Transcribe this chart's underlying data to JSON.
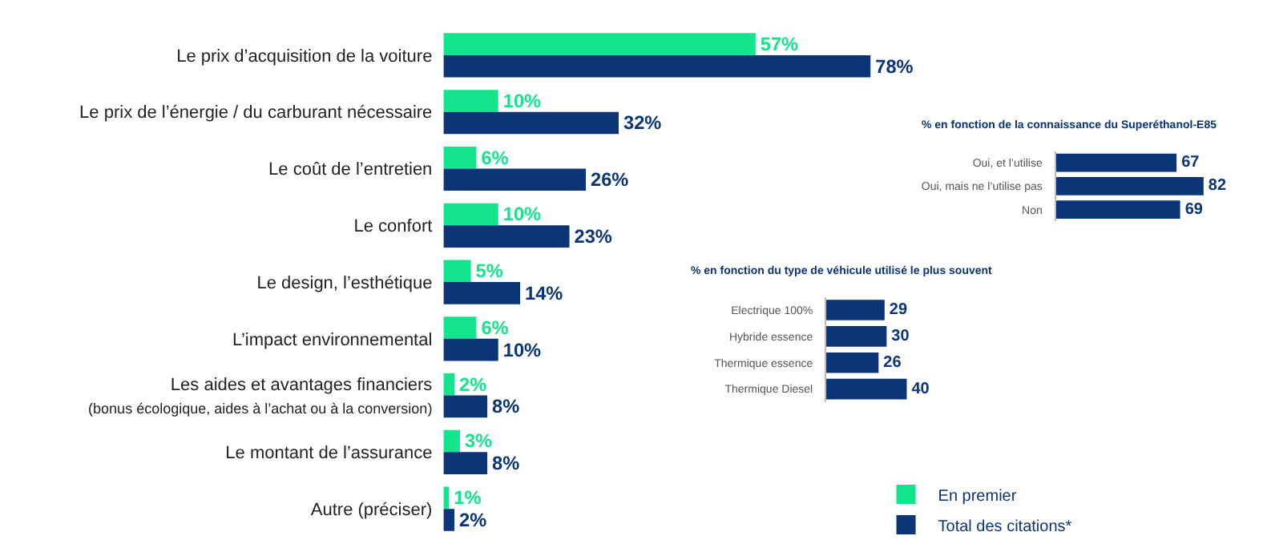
{
  "chart_data": [
    {
      "type": "bar",
      "orientation": "horizontal",
      "legend": "bottom right",
      "categories": [
        "Le prix d’acquisition de la voiture",
        "Le prix de l’énergie / du carburant nécessaire",
        "Le coût de l’entretien",
        "Le confort",
        "Le design, l’esthétique",
        "L’impact environnemental",
        "Les aides et avantages financiers\n(bonus écologique, aides à l’achat ou à la conversion)",
        "Le montant de l’assurance",
        "Autre (préciser)"
      ],
      "series": [
        {
          "name": "En premier",
          "color": "#12e58c",
          "values": [
            57,
            10,
            6,
            10,
            5,
            6,
            2,
            3,
            1
          ],
          "value_labels": [
            "57%",
            "10%",
            "6%",
            "10%",
            "5%",
            "6%",
            "2%",
            "3%",
            "1%"
          ]
        },
        {
          "name": "Total des citations*",
          "color": "#0b3577",
          "values": [
            78,
            32,
            26,
            23,
            14,
            10,
            8,
            8,
            2
          ],
          "value_labels": [
            "78%",
            "32%",
            "26%",
            "23%",
            "14%",
            "10%",
            "8%",
            "8%",
            "2%"
          ]
        }
      ]
    },
    {
      "type": "bar",
      "orientation": "horizontal",
      "title": "% en fonction de la connaissance du Superéthanol-E85",
      "categories": [
        "Oui, et l’utilise",
        "Oui, mais ne l’utilise pas",
        "Non"
      ],
      "series": [
        {
          "color": "#0b3577",
          "values": [
            67,
            82,
            69
          ]
        }
      ],
      "data_labels": true
    },
    {
      "type": "bar",
      "orientation": "horizontal",
      "title": "% en fonction du type de véhicule utilisé le plus souvent",
      "categories": [
        "Electrique 100%",
        "Hybride essence",
        "Thermique essence",
        "Thermique Diesel"
      ],
      "series": [
        {
          "color": "#0b3577",
          "values": [
            29,
            30,
            26,
            40
          ]
        }
      ],
      "data_labels": true
    }
  ]
}
